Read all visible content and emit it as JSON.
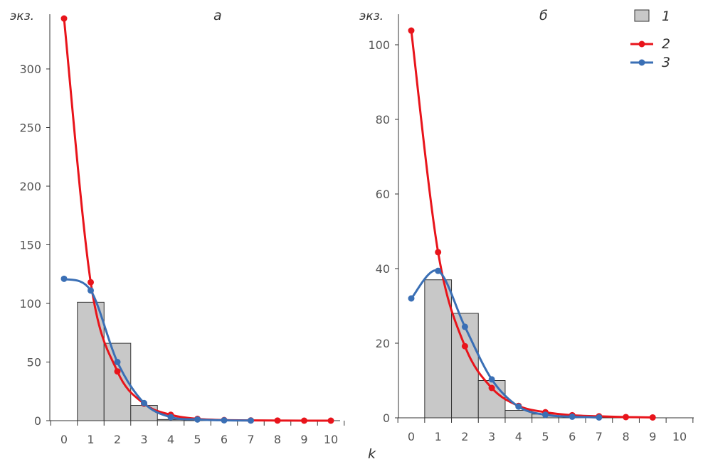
{
  "chart_data": [
    {
      "type": "bar+line",
      "title": "а",
      "ylabel": "экз.",
      "xlabel": "k",
      "categories": [
        0,
        1,
        2,
        3,
        4,
        5,
        6,
        7,
        8,
        9,
        10
      ],
      "ylim": [
        0,
        350
      ],
      "yticks": [
        0,
        50,
        100,
        150,
        200,
        250,
        300
      ],
      "series": [
        {
          "name": "1",
          "kind": "bar",
          "x": [
            1,
            2,
            3,
            4,
            5
          ],
          "values": [
            101,
            66,
            13,
            1,
            0.5
          ]
        },
        {
          "name": "2",
          "kind": "line",
          "x": [
            0,
            1,
            2,
            3,
            4,
            5,
            6,
            7,
            8,
            9,
            10
          ],
          "values": [
            343,
            118,
            42,
            14.5,
            5,
            1.5,
            0.5,
            0.2,
            0.1,
            0,
            0
          ]
        },
        {
          "name": "3",
          "kind": "line",
          "x": [
            0,
            1,
            2,
            3,
            4,
            5,
            6,
            7
          ],
          "values": [
            121,
            111,
            50,
            15,
            3,
            1,
            0.3,
            0.1
          ]
        }
      ]
    },
    {
      "type": "bar+line",
      "title": "б",
      "ylabel": "экз.",
      "xlabel": "k",
      "categories": [
        0,
        1,
        2,
        3,
        4,
        5,
        6,
        7,
        8,
        9,
        10
      ],
      "ylim": [
        0,
        104
      ],
      "yticks": [
        0,
        20,
        40,
        60,
        80,
        100
      ],
      "series": [
        {
          "name": "1",
          "kind": "bar",
          "x": [
            1,
            2,
            3,
            4,
            5
          ],
          "values": [
            37,
            28,
            10,
            2,
            1
          ]
        },
        {
          "name": "2",
          "kind": "line",
          "x": [
            0,
            1,
            2,
            3,
            4,
            5,
            6,
            7,
            8,
            9
          ],
          "values": [
            103.8,
            44.4,
            19.2,
            8,
            3.2,
            1.5,
            0.7,
            0.4,
            0.2,
            0.1
          ]
        },
        {
          "name": "3",
          "kind": "line",
          "x": [
            0,
            1,
            2,
            3,
            4,
            5,
            6,
            7
          ],
          "values": [
            32,
            39.4,
            24.4,
            10.3,
            3,
            0.8,
            0.3,
            0.1
          ]
        }
      ]
    }
  ],
  "legend": {
    "placement": "top-right",
    "items": [
      {
        "label": "1",
        "color": "#c8c8c8"
      },
      {
        "label": "2",
        "color": "#e8141b"
      },
      {
        "label": "3",
        "color": "#3a6fb5"
      }
    ]
  },
  "labels": {
    "k": "k",
    "ylabel_a": "экз.",
    "ylabel_b": "экз.",
    "title_a": "а",
    "title_b": "б"
  }
}
